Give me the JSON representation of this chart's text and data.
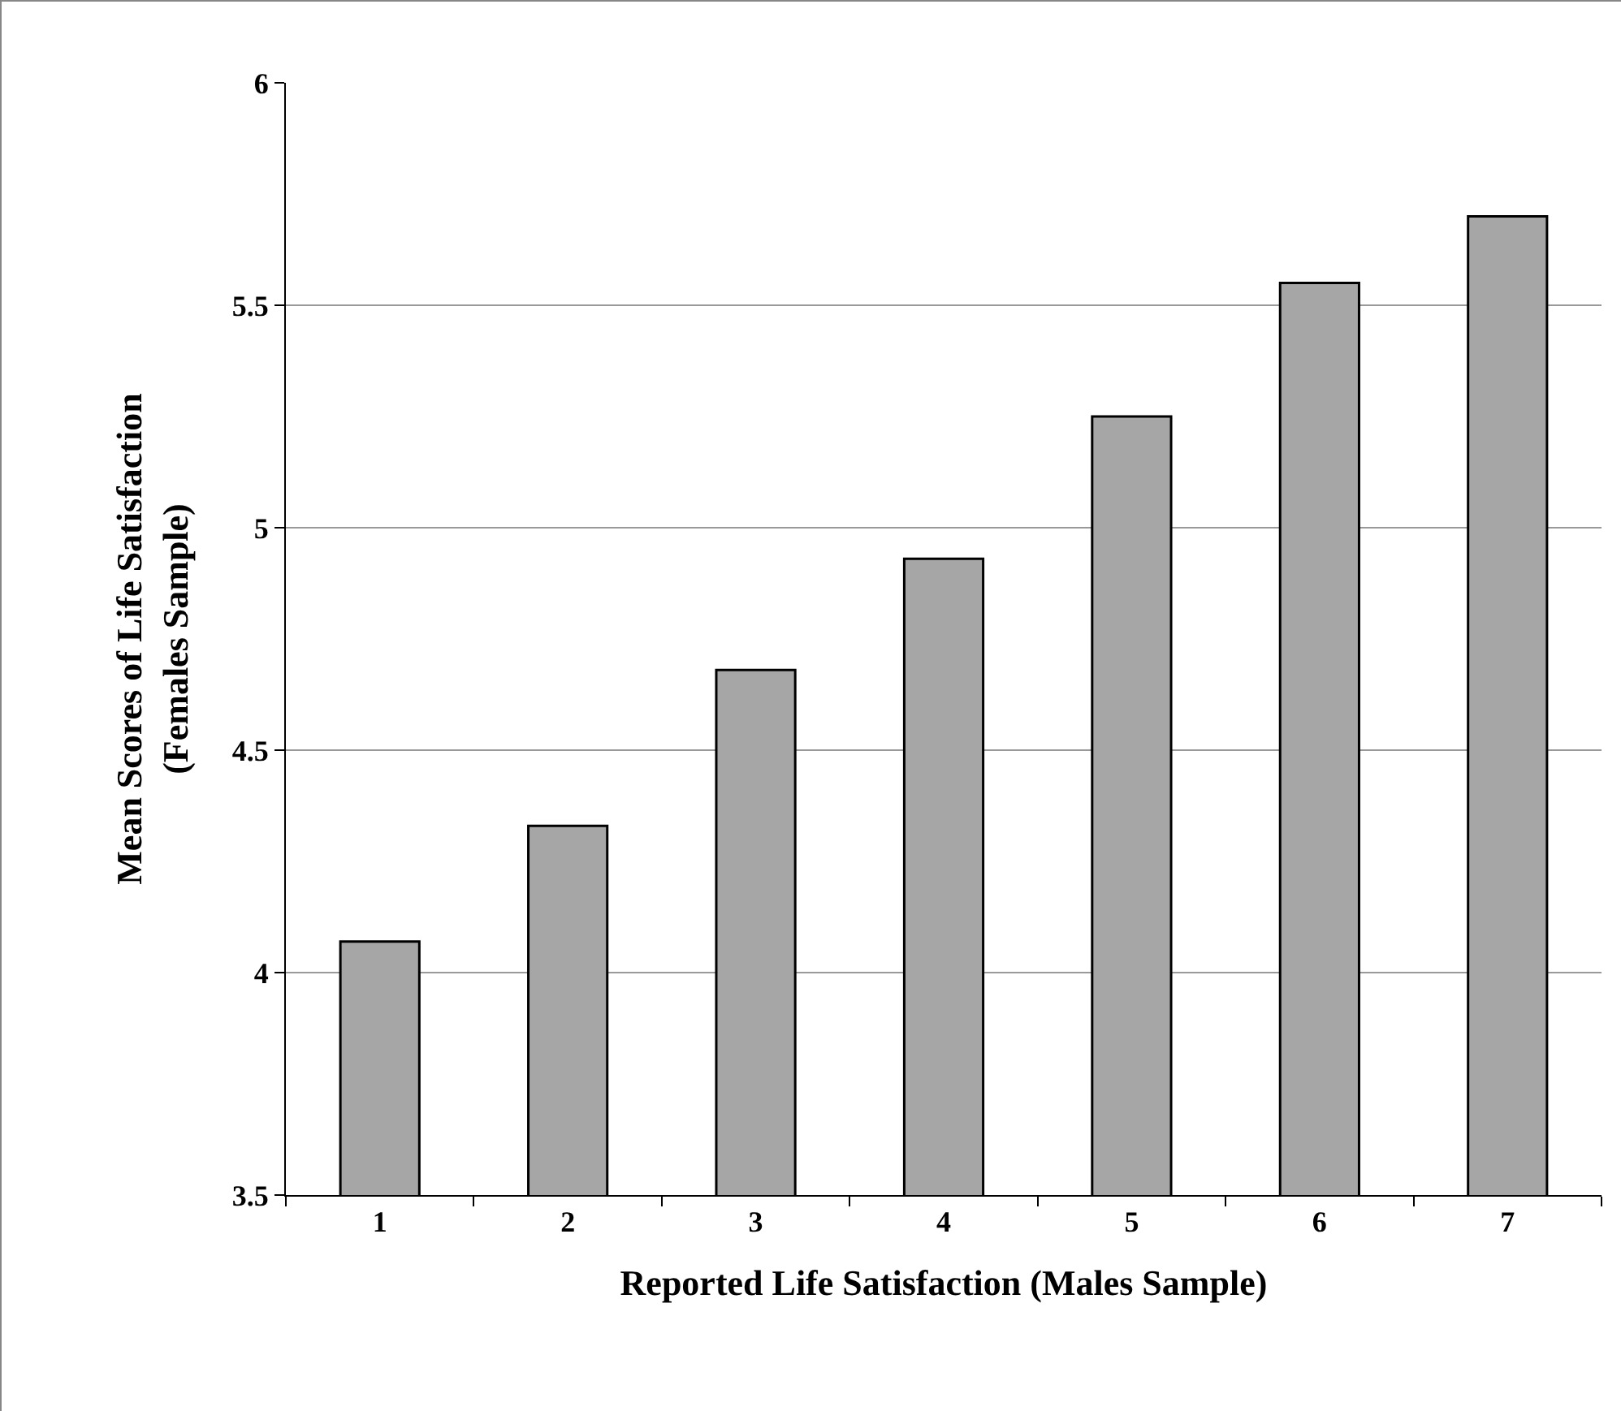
{
  "chart_data": {
    "type": "bar",
    "xlabel": "Reported Life Satisfaction (Males Sample)",
    "ylabel": "Mean Scores of Life Satisfaction\n(Females Sample)",
    "categories": [
      "1",
      "2",
      "3",
      "4",
      "5",
      "6",
      "7"
    ],
    "values": [
      4.07,
      4.33,
      4.68,
      4.93,
      5.25,
      5.55,
      5.7
    ],
    "color": "#a6a6a6",
    "ylim": [
      3.5,
      6
    ],
    "yticks": [
      3.5,
      4,
      4.5,
      5,
      5.5,
      6
    ],
    "grid": "y"
  }
}
